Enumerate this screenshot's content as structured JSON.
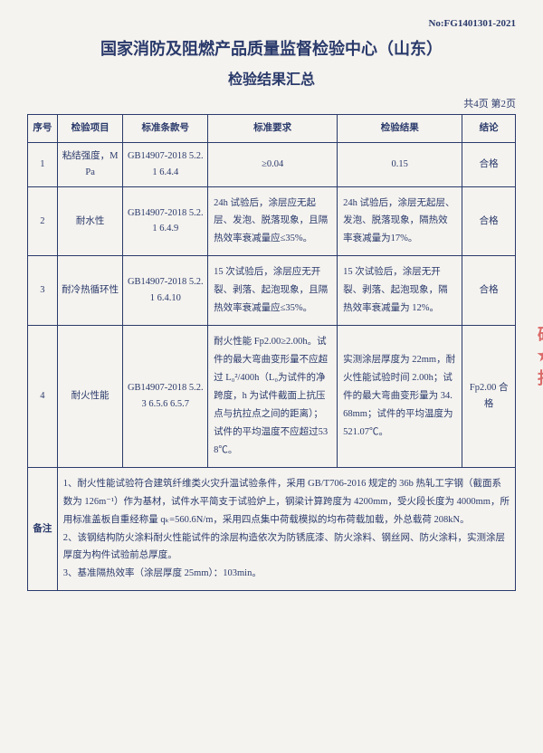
{
  "docNo": "No:FG1401301-2021",
  "title1": "国家消防及阻燃产品质量监督检验中心（山东）",
  "title2": "检验结果汇总",
  "pageInfo": "共4页 第2页",
  "headers": {
    "seq": "序号",
    "item": "检验项目",
    "stdNo": "标准条款号",
    "req": "标准要求",
    "result": "检验结果",
    "conclusion": "结论"
  },
  "rows": [
    {
      "seq": "1",
      "item": "粘结强度，MPa",
      "stdNo": "GB14907-2018 5.2.1 6.4.4",
      "req": "≥0.04",
      "result": "0.15",
      "conclusion": "合格"
    },
    {
      "seq": "2",
      "item": "耐水性",
      "stdNo": "GB14907-2018 5.2.1 6.4.9",
      "req": "24h 试验后，涂层应无起层、发泡、脱落现象，且隔热效率衰减量应≤35%。",
      "result": "24h 试验后，涂层无起层、发泡、脱落现象，隔热效率衰减量为17%。",
      "conclusion": "合格"
    },
    {
      "seq": "3",
      "item": "耐冷热循环性",
      "stdNo": "GB14907-2018 5.2.1 6.4.10",
      "req": "15 次试验后，涂层应无开裂、剥落、起泡现象，且隔热效率衰减量应≤35%。",
      "result": "15 次试验后，涂层无开裂、剥落、起泡现象，隔热效率衰减量为 12%。",
      "conclusion": "合格"
    },
    {
      "seq": "4",
      "item": "耐火性能",
      "stdNo": "GB14907-2018 5.2.3 6.5.6 6.5.7",
      "req": "耐火性能 Fp2.00≥2.00h。试件的最大弯曲变形量不应超过 L₀²/400h（L₀为试件的净跨度，h 为试件截面上抗压点与抗拉点之间的距离）；试件的平均温度不应超过538℃。",
      "result": "实测涂层厚度为 22mm，耐火性能试验时间 2.00h；试件的最大弯曲变形量为 34.68mm；试件的平均温度为 521.07℃。",
      "conclusion": "Fp2.00 合格"
    }
  ],
  "remarkLabel": "备注",
  "remarks": "1、耐火性能试验符合建筑纤维类火灾升温试验条件，采用 GB/T706-2016 规定的 36b 热轧工字钢（截面系数为 126m⁻¹）作为基材，试件水平简支于试验炉上，钢梁计算跨度为 4200mm，受火段长度为 4000mm，所用标准盖板自重经称量 qₖ=560.6N/m，采用四点集中荷载模拟的均布荷载加载，外总载荷 208kN。\n2、该钢结构防火涂料耐火性能试件的涂层构造依次为防锈底漆、防火涂料、钢丝网、防火涂料，实测涂层厚度为构件试验前总厚度。\n3、基准隔热效率（涂层厚度 25mm）：103min。",
  "stampText": "硕 ★ 报"
}
